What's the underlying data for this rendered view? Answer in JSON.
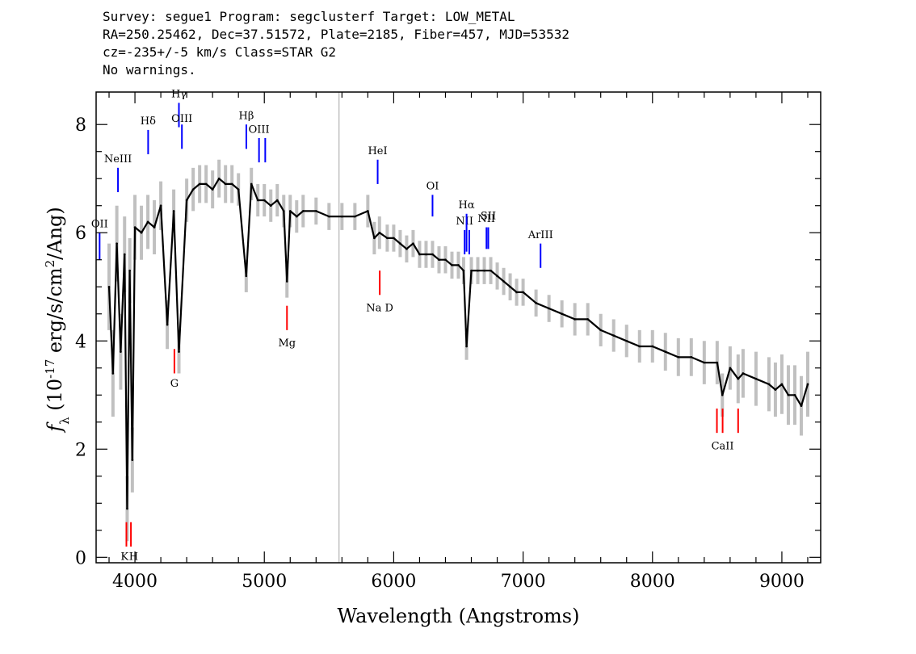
{
  "header": {
    "line1": "Survey: segue1 Program: segclusterf Target: LOW_METAL",
    "line2": "RA=250.25462, Dec=37.51572, Plate=2185, Fiber=457, MJD=53532",
    "line3": "cz=-235+/-5 km/s Class=STAR G2",
    "line4": "No warnings."
  },
  "chart_data": {
    "type": "line",
    "xlabel": "Wavelength (Angstroms)",
    "ylabel": "f_λ (10^-17 erg/s/cm^2/Ang)",
    "xlim": [
      3700,
      9300
    ],
    "ylim": [
      -0.1,
      8.6
    ],
    "xticks": [
      "4000",
      "5000",
      "6000",
      "7000",
      "8000",
      "9000"
    ],
    "yticks": [
      "0",
      "2",
      "4",
      "6",
      "8"
    ],
    "colors": {
      "flux": "#000000",
      "error_band": "#c0c0c0",
      "emission_lines": "#0000ff",
      "absorption_lines": "#ff0000"
    },
    "series": [
      {
        "x": [
          3800,
          3830,
          3860,
          3890,
          3920,
          3940,
          3960,
          3980,
          4000,
          4050,
          4100,
          4150,
          4200,
          4250,
          4300,
          4340,
          4400,
          4450,
          4500,
          4550,
          4600,
          4650,
          4700,
          4750,
          4800,
          4860,
          4900,
          4950,
          5000,
          5050,
          5100,
          5150,
          5175,
          5200,
          5250,
          5300,
          5400,
          5500,
          5600,
          5700,
          5800,
          5850,
          5890,
          5950,
          6000,
          6050,
          6100,
          6150,
          6200,
          6250,
          6300,
          6350,
          6400,
          6450,
          6500,
          6540,
          6563,
          6600,
          6650,
          6700,
          6750,
          6800,
          6850,
          6900,
          6950,
          7000,
          7100,
          7200,
          7300,
          7400,
          7500,
          7600,
          7700,
          7800,
          7900,
          8000,
          8100,
          8200,
          8300,
          8400,
          8500,
          8540,
          8600,
          8662,
          8700,
          8800,
          8900,
          8950,
          9000,
          9050,
          9100,
          9150,
          9200
        ],
        "y": [
          5.0,
          3.4,
          5.8,
          3.8,
          5.6,
          0.9,
          5.3,
          1.8,
          6.1,
          6.0,
          6.2,
          6.1,
          6.5,
          4.3,
          6.4,
          3.8,
          6.6,
          6.8,
          6.9,
          6.9,
          6.8,
          7.0,
          6.9,
          6.9,
          6.8,
          5.2,
          6.9,
          6.6,
          6.6,
          6.5,
          6.6,
          6.4,
          5.1,
          6.4,
          6.3,
          6.4,
          6.4,
          6.3,
          6.3,
          6.3,
          6.4,
          5.9,
          6.0,
          5.9,
          5.9,
          5.8,
          5.7,
          5.8,
          5.6,
          5.6,
          5.6,
          5.5,
          5.5,
          5.4,
          5.4,
          5.3,
          3.9,
          5.3,
          5.3,
          5.3,
          5.3,
          5.2,
          5.1,
          5.0,
          4.9,
          4.9,
          4.7,
          4.6,
          4.5,
          4.4,
          4.4,
          4.2,
          4.1,
          4.0,
          3.9,
          3.9,
          3.8,
          3.7,
          3.7,
          3.6,
          3.6,
          3.0,
          3.5,
          3.3,
          3.4,
          3.3,
          3.2,
          3.1,
          3.2,
          3.0,
          3.0,
          2.8,
          3.2
        ],
        "err": [
          0.8,
          0.8,
          0.7,
          0.7,
          0.7,
          0.6,
          0.6,
          0.6,
          0.6,
          0.5,
          0.5,
          0.5,
          0.45,
          0.45,
          0.4,
          0.4,
          0.4,
          0.4,
          0.35,
          0.35,
          0.35,
          0.35,
          0.35,
          0.35,
          0.3,
          0.3,
          0.3,
          0.3,
          0.3,
          0.3,
          0.3,
          0.3,
          0.3,
          0.3,
          0.3,
          0.3,
          0.25,
          0.25,
          0.25,
          0.25,
          0.3,
          0.3,
          0.3,
          0.25,
          0.25,
          0.25,
          0.25,
          0.25,
          0.25,
          0.25,
          0.25,
          0.25,
          0.25,
          0.25,
          0.25,
          0.25,
          0.25,
          0.25,
          0.25,
          0.25,
          0.25,
          0.25,
          0.25,
          0.25,
          0.25,
          0.25,
          0.25,
          0.25,
          0.25,
          0.3,
          0.3,
          0.3,
          0.3,
          0.3,
          0.3,
          0.3,
          0.35,
          0.35,
          0.35,
          0.4,
          0.4,
          0.4,
          0.4,
          0.45,
          0.45,
          0.5,
          0.5,
          0.5,
          0.55,
          0.55,
          0.55,
          0.55,
          0.6
        ]
      }
    ],
    "emission_lines": [
      {
        "label": "OII",
        "x": 3727,
        "y1": 5.5,
        "y2": 6.0,
        "label_y": 6.1
      },
      {
        "label": "NeIII",
        "x": 3869,
        "y1": 6.75,
        "y2": 7.2,
        "label_y": 7.3
      },
      {
        "label": "Hδ",
        "x": 4102,
        "y1": 7.45,
        "y2": 7.9,
        "label_y": 8.0
      },
      {
        "label": "Hγ",
        "x": 4340,
        "y1": 7.95,
        "y2": 8.4,
        "label_y": 8.5
      },
      {
        "label": "OIII",
        "x": 4363,
        "y1": 7.55,
        "y2": 8.0,
        "label_y": 8.05
      },
      {
        "label": "Hβ",
        "x": 4861,
        "y1": 7.55,
        "y2": 8.0,
        "label_y": 8.1
      },
      {
        "label": "OIII",
        "x": 4959,
        "y1": 7.3,
        "y2": 7.75,
        "label_y": 7.85
      },
      {
        "label": "",
        "x": 5007,
        "y1": 7.3,
        "y2": 7.75,
        "label_y": 7.85
      },
      {
        "label": "HeI",
        "x": 5876,
        "y1": 6.9,
        "y2": 7.35,
        "label_y": 7.45
      },
      {
        "label": "OI",
        "x": 6300,
        "y1": 6.3,
        "y2": 6.7,
        "label_y": 6.8
      },
      {
        "label": "NII",
        "x": 6548,
        "y1": 5.6,
        "y2": 6.05,
        "label_y": 6.15
      },
      {
        "label": "Hα",
        "x": 6563,
        "y1": 5.65,
        "y2": 6.35,
        "label_y": 6.45
      },
      {
        "label": "",
        "x": 6584,
        "y1": 5.6,
        "y2": 6.05,
        "label_y": 6.15
      },
      {
        "label": "NII",
        "x": 6717,
        "y1": 5.7,
        "y2": 6.1,
        "label_y": 6.2
      },
      {
        "label": "SII",
        "x": 6731,
        "y1": 5.7,
        "y2": 6.1,
        "label_y": 6.25
      },
      {
        "label": "ArIII",
        "x": 7135,
        "y1": 5.35,
        "y2": 5.8,
        "label_y": 5.9
      }
    ],
    "absorption_lines": [
      {
        "label": "K",
        "x": 3934,
        "y1": 0.2,
        "y2": 0.65,
        "label_y": -0.05,
        "label_x": 3920
      },
      {
        "label": "H",
        "x": 3969,
        "y1": 0.2,
        "y2": 0.65,
        "label_y": -0.05,
        "label_x": 3990
      },
      {
        "label": "G",
        "x": 4305,
        "y1": 3.4,
        "y2": 3.85,
        "label_y": 3.15
      },
      {
        "label": "Mg",
        "x": 5175,
        "y1": 4.2,
        "y2": 4.65,
        "label_y": 3.9
      },
      {
        "label": "Na D",
        "x": 5892,
        "y1": 4.85,
        "y2": 5.3,
        "label_y": 4.55
      },
      {
        "label": "",
        "x": 8498,
        "y1": 2.3,
        "y2": 2.75,
        "label_y": 2.0
      },
      {
        "label": "CaII",
        "x": 8542,
        "y1": 2.3,
        "y2": 2.75,
        "label_y": 2.0
      },
      {
        "label": "",
        "x": 8662,
        "y1": 2.3,
        "y2": 2.75,
        "label_y": 2.0
      }
    ],
    "sky_line_x": 5577
  }
}
